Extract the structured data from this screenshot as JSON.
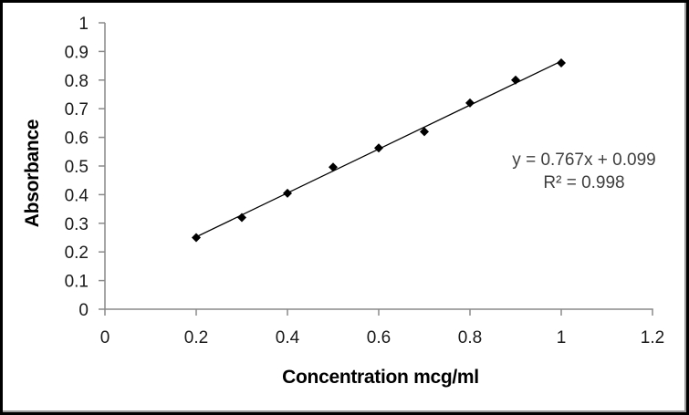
{
  "chart_data": {
    "type": "scatter",
    "title": "",
    "xlabel": "Concentration mcg/ml",
    "ylabel": "Absorbance",
    "x": [
      0.2,
      0.3,
      0.4,
      0.5,
      0.6,
      0.7,
      0.8,
      0.9,
      1.0
    ],
    "y": [
      0.25,
      0.32,
      0.405,
      0.496,
      0.563,
      0.62,
      0.72,
      0.8,
      0.86
    ],
    "xlim": [
      0,
      1.2
    ],
    "ylim": [
      0,
      1
    ],
    "x_ticks": {
      "values": [
        0,
        0.2,
        0.4,
        0.6,
        0.8,
        1.0,
        1.2
      ],
      "labels": [
        "0",
        "0.2",
        "0.4",
        "0.6",
        "0.8",
        "1",
        "1.2"
      ]
    },
    "y_ticks": {
      "values": [
        0,
        0.1,
        0.2,
        0.3,
        0.4,
        0.5,
        0.6,
        0.7,
        0.8,
        0.9,
        1.0
      ],
      "labels": [
        "0",
        "0.1",
        "0.2",
        "0.3",
        "0.4",
        "0.5",
        "0.6",
        "0.7",
        "0.8",
        "0.9",
        "1"
      ]
    },
    "grid": false,
    "legend": false,
    "marker": "filled-diamond",
    "trendline": {
      "type": "linear",
      "slope": 0.767,
      "intercept": 0.099,
      "x_range": [
        0.2,
        1.0
      ]
    },
    "annotation": {
      "equation": "y = 0.767x + 0.099",
      "r_squared": "R² = 0.998"
    }
  },
  "colors": {
    "background": "#ffffff",
    "frame_border": "#000000",
    "axis": "#8a8a8a",
    "tick_label": "#1a1a1a",
    "title_text": "#000000",
    "equation_text": "#3f3f3f",
    "marker": "#000000",
    "trendline": "#000000"
  }
}
